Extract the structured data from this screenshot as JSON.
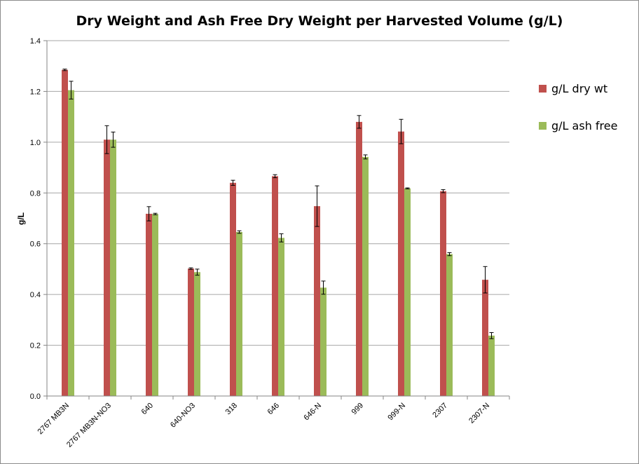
{
  "chart_data": {
    "type": "bar",
    "title": "Dry Weight and Ash Free Dry Weight per Harvested Volume (g/L)",
    "xlabel": "",
    "ylabel": "g/L",
    "ylim": [
      0,
      1.4
    ],
    "yticks": [
      "0.0",
      "0.2",
      "0.4",
      "0.6",
      "0.8",
      "1.0",
      "1.2",
      "1.4"
    ],
    "grid": true,
    "legend_position": "right",
    "categories": [
      "2767 MB3N",
      "2767 MB3N-NO3",
      "640",
      "640-NO3",
      "318",
      "646",
      "646-N",
      "999",
      "999-N",
      "2307",
      "2307-N"
    ],
    "series": [
      {
        "name": "g/L dry wt",
        "color": "#c0504d",
        "values": [
          1.285,
          1.01,
          0.718,
          0.502,
          0.84,
          0.866,
          0.748,
          1.08,
          1.042,
          0.807,
          0.458
        ],
        "errors": [
          0.003,
          0.055,
          0.028,
          0.003,
          0.01,
          0.006,
          0.08,
          0.025,
          0.048,
          0.006,
          0.052
        ]
      },
      {
        "name": "g/L ash free",
        "color": "#9bbb59",
        "values": [
          1.205,
          1.01,
          0.717,
          0.488,
          0.646,
          0.623,
          0.427,
          0.942,
          0.818,
          0.559,
          0.238
        ],
        "errors": [
          0.035,
          0.03,
          0.003,
          0.012,
          0.005,
          0.016,
          0.026,
          0.008,
          0.002,
          0.006,
          0.012
        ]
      }
    ]
  }
}
